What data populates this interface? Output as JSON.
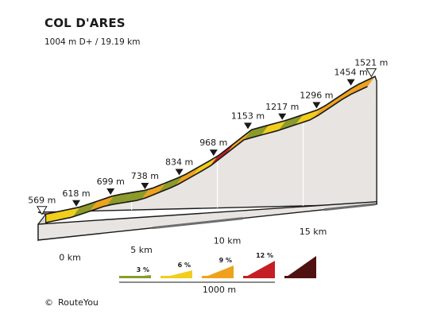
{
  "chart_data": {
    "type": "area",
    "title": "COL D'ARES",
    "subtitle": "1004 m D+ / 19.19 km",
    "distance_unit": "km",
    "elevation_unit": "m",
    "x_ticks": [
      0,
      5,
      10,
      15
    ],
    "x_tick_labels": [
      "0 km",
      "5 km",
      "10 km",
      "15 km"
    ],
    "segment_length_km": 1,
    "elevation_labels": [
      {
        "km": 0.0,
        "elevation": 569,
        "label": "569 m",
        "marker": "start"
      },
      {
        "km": 2.0,
        "elevation": 618,
        "label": "618 m",
        "marker": "point"
      },
      {
        "km": 4.0,
        "elevation": 699,
        "label": "699 m",
        "marker": "point"
      },
      {
        "km": 6.0,
        "elevation": 738,
        "label": "738 m",
        "marker": "point"
      },
      {
        "km": 8.0,
        "elevation": 834,
        "label": "834 m",
        "marker": "point"
      },
      {
        "km": 10.0,
        "elevation": 968,
        "label": "968 m",
        "marker": "point"
      },
      {
        "km": 12.0,
        "elevation": 1153,
        "label": "1153 m",
        "marker": "point"
      },
      {
        "km": 14.0,
        "elevation": 1217,
        "label": "1217 m",
        "marker": "point"
      },
      {
        "km": 16.0,
        "elevation": 1296,
        "label": "1296 m",
        "marker": "point"
      },
      {
        "km": 18.0,
        "elevation": 1454,
        "label": "1454 m",
        "marker": "point"
      },
      {
        "km": 19.19,
        "elevation": 1521,
        "label": "1521 m",
        "marker": "end"
      }
    ],
    "segment_grades": [
      {
        "km_from": 0,
        "km_to": 1,
        "category": "6"
      },
      {
        "km_from": 1,
        "km_to": 2,
        "category": "6"
      },
      {
        "km_from": 2,
        "km_to": 3,
        "category": "3"
      },
      {
        "km_from": 3,
        "km_to": 4,
        "category": "9"
      },
      {
        "km_from": 4,
        "km_to": 5,
        "category": "3"
      },
      {
        "km_from": 5,
        "km_to": 6,
        "category": "3"
      },
      {
        "km_from": 6,
        "km_to": 7,
        "category": "9"
      },
      {
        "km_from": 7,
        "km_to": 8,
        "category": "3"
      },
      {
        "km_from": 8,
        "km_to": 9,
        "category": "9"
      },
      {
        "km_from": 9,
        "km_to": 10,
        "category": "6"
      },
      {
        "km_from": 10,
        "km_to": 11,
        "category": "12"
      },
      {
        "km_from": 11,
        "km_to": 12,
        "category": "9"
      },
      {
        "km_from": 12,
        "km_to": 13,
        "category": "3"
      },
      {
        "km_from": 13,
        "km_to": 14,
        "category": "6"
      },
      {
        "km_from": 14,
        "km_to": 15,
        "category": "3"
      },
      {
        "km_from": 15,
        "km_to": 16,
        "category": "6"
      },
      {
        "km_from": 16,
        "km_to": 17,
        "category": "9"
      },
      {
        "km_from": 17,
        "km_to": 18,
        "category": "9"
      },
      {
        "km_from": 18,
        "km_to": 19.19,
        "category": "9"
      }
    ],
    "legend": {
      "categories": [
        {
          "key": "3",
          "label": "3 %",
          "color": "#8c9a2a"
        },
        {
          "key": "6",
          "label": "6 %",
          "color": "#f2cd1b"
        },
        {
          "key": "9",
          "label": "9 %",
          "color": "#eea21c"
        },
        {
          "key": "12",
          "label": "12 %",
          "color": "#c61e25"
        },
        {
          "key": "max",
          "label": "",
          "color": "#4f1210"
        }
      ],
      "scale_label": "1000 m"
    },
    "colors": {
      "side_face": "#e7e4e1",
      "outline": "#1a1a1a",
      "base_shadow": "#6d6d6d"
    }
  },
  "footer": {
    "credit_mark": "©",
    "credit": "RouteYou"
  }
}
